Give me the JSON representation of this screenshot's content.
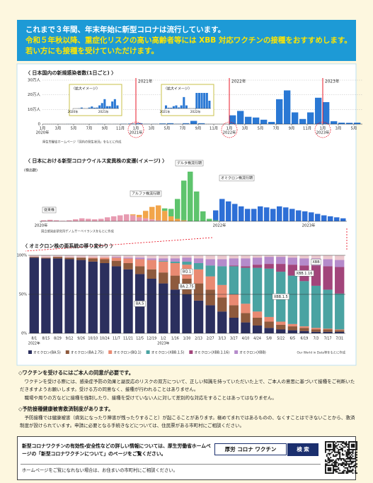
{
  "header": {
    "lines": [
      "これまで３年間、年末年始に新型コロナは流行しています。",
      "令和５年秋以降、重症化リスクの高い高齢者等には XBB 対応ワクチンの接種をおすすめします。",
      "若い方にも接種を受けていただけます。"
    ]
  },
  "chart_data": [
    {
      "type": "bar",
      "title": "〈 日本国内の新規感染者数(1日ごと) 〉",
      "color": "#2a78d4",
      "x": [
        "2020-01",
        "2020-02",
        "2020-03",
        "2020-04",
        "2020-05",
        "2020-06",
        "2020-07",
        "2020-08",
        "2020-09",
        "2020-10",
        "2020-11",
        "2020-12",
        "2021-01",
        "2021-02",
        "2021-03",
        "2021-04",
        "2021-05",
        "2021-06",
        "2021-07",
        "2021-08",
        "2021-09",
        "2021-10",
        "2021-11",
        "2021-12",
        "2022-01",
        "2022-02",
        "2022-03",
        "2022-04",
        "2022-05",
        "2022-06",
        "2022-07",
        "2022-08",
        "2022-09",
        "2022-10",
        "2022-11",
        "2022-12",
        "2023-01",
        "2023-02",
        "2023-03",
        "2023-04",
        "2023-05"
      ],
      "values": [
        0,
        10,
        100,
        600,
        100,
        50,
        600,
        1300,
        500,
        600,
        2000,
        3500,
        6000,
        1500,
        1500,
        4500,
        6000,
        2000,
        6000,
        22000,
        6000,
        400,
        150,
        300,
        60000,
        90000,
        50000,
        45000,
        30000,
        15000,
        170000,
        230000,
        80000,
        35000,
        80000,
        180000,
        150000,
        20000,
        10000,
        9000,
        10000
      ],
      "xlim": [
        "2020-01",
        "2023-05"
      ],
      "ylim": [
        0,
        300000
      ],
      "yticks": [
        0,
        {
          "value": 100000,
          "label": "10万人"
        },
        {
          "value": 200000,
          "label": "20万人"
        },
        {
          "value": 300000,
          "label": "30万人"
        }
      ],
      "xticks": [
        {
          "value": "2020-01",
          "label": "1月"
        },
        {
          "value": "2020-03",
          "label": "3月"
        },
        {
          "value": "2020-05",
          "label": "5月"
        },
        {
          "value": "2020-07",
          "label": "7月"
        },
        {
          "value": "2020-09",
          "label": "9月"
        },
        {
          "value": "2020-11",
          "label": "11月"
        },
        {
          "value": "2021-01",
          "label": "1月"
        },
        {
          "value": "2021-03",
          "label": "3月"
        },
        {
          "value": "2021-05",
          "label": "5月"
        },
        {
          "value": "2021-07",
          "label": "7月"
        },
        {
          "value": "2021-09",
          "label": "9月"
        },
        {
          "value": "2021-11",
          "label": "11月"
        },
        {
          "value": "2022-01",
          "label": "1月"
        },
        {
          "value": "2022-03",
          "label": "3月"
        },
        {
          "value": "2022-05",
          "label": "5月"
        },
        {
          "value": "2022-07",
          "label": "7月"
        },
        {
          "value": "2022-09",
          "label": "9月"
        },
        {
          "value": "2022-11",
          "label": "11月"
        },
        {
          "value": "2023-01",
          "label": "1月"
        },
        {
          "value": "2023-03",
          "label": "3月"
        },
        {
          "value": "2023-05",
          "label": "5月"
        }
      ],
      "year_labels": [
        {
          "value": "2020-01",
          "label": "2020年"
        },
        {
          "value": "2021-01",
          "label": "2021年"
        },
        {
          "value": "2022-01",
          "label": "2022年"
        },
        {
          "value": "2023-01",
          "label": "2023年"
        }
      ],
      "markers": [
        {
          "value": "2021-01",
          "label": "2021年"
        },
        {
          "value": "2022-01",
          "label": "2022年"
        },
        {
          "value": "2023-01",
          "label": "2023年"
        }
      ],
      "marker_color": "#e60012",
      "insets": [
        {
          "title": "〈拡大イメージ〉",
          "xlim": [
            "2020-01",
            "2021-06"
          ],
          "ylim": [
            0,
            10000
          ],
          "xticks": [
            {
              "value": "2020-01",
              "label": "2020年"
            },
            {
              "value": "2021-01",
              "label": "2021年"
            }
          ]
        },
        {
          "title": "〈拡大イメージ〉",
          "xlim": [
            "2021-01",
            "2022-06"
          ],
          "ylim": [
            0,
            30000
          ],
          "xticks": [
            {
              "value": "2021-01",
              "label": "2021年"
            },
            {
              "value": "2022-01",
              "label": "2022年"
            }
          ]
        }
      ],
      "source": "厚生労働省ホームページ「国内の発生状況」をもとに作成"
    },
    {
      "type": "stacked_bar",
      "title": "〈 日本における新型コロナウイルス変異株の変遷(イメージ) 〉",
      "y_label": "(検出数)",
      "categories": [
        null,
        null,
        null,
        null,
        null,
        null,
        null,
        null,
        null,
        null,
        null,
        null,
        null,
        null,
        null,
        null,
        null,
        null,
        null,
        null,
        null,
        null,
        null,
        null,
        null,
        null,
        null,
        null,
        null,
        null,
        null,
        null,
        null,
        null,
        null,
        null,
        null,
        null,
        null,
        null,
        null,
        null,
        null,
        null,
        null,
        null,
        null,
        null
      ],
      "ylim": [
        0,
        100
      ],
      "year_labels": [
        {
          "value": 0,
          "label": "2020年"
        },
        {
          "value": 28,
          "label": "2022年"
        },
        {
          "value": 42,
          "label": "2023年"
        }
      ],
      "series": [
        {
          "name": "従来株",
          "color": "#e79bb1",
          "values": [
            2,
            3,
            2,
            1,
            2,
            4,
            6,
            5,
            4,
            5,
            8,
            10,
            12,
            14,
            12,
            8,
            6,
            4,
            2,
            1,
            0,
            0,
            0,
            0,
            0,
            0,
            0,
            0,
            0,
            0,
            0,
            0,
            0,
            0,
            0,
            0,
            0,
            0,
            0,
            0,
            0,
            0,
            0,
            0,
            0,
            0,
            0,
            0
          ]
        },
        {
          "name": "アルファ株流行期",
          "color": "#f2a54a",
          "values": [
            0,
            0,
            0,
            0,
            0,
            0,
            0,
            0,
            0,
            0,
            0,
            0,
            0,
            0,
            2,
            5,
            15,
            25,
            30,
            20,
            10,
            5,
            2,
            0,
            0,
            0,
            0,
            0,
            0,
            0,
            0,
            0,
            0,
            0,
            0,
            0,
            0,
            0,
            0,
            0,
            0,
            0,
            0,
            0,
            0,
            0,
            0,
            0
          ]
        },
        {
          "name": "デルタ株流行期",
          "color": "#5ec46d",
          "values": [
            0,
            0,
            0,
            0,
            0,
            0,
            0,
            0,
            0,
            0,
            0,
            0,
            0,
            0,
            0,
            0,
            0,
            0,
            0,
            5,
            15,
            40,
            80,
            100,
            60,
            20,
            5,
            2,
            0,
            0,
            0,
            0,
            0,
            0,
            0,
            0,
            0,
            0,
            0,
            0,
            0,
            0,
            0,
            0,
            0,
            0,
            0,
            0
          ]
        },
        {
          "name": "オミクロン株流行期",
          "color": "#2e6fd6",
          "values": [
            0,
            0,
            0,
            0,
            0,
            0,
            0,
            0,
            0,
            0,
            0,
            0,
            0,
            0,
            0,
            0,
            0,
            0,
            0,
            0,
            0,
            0,
            0,
            0,
            0,
            0,
            0,
            20,
            45,
            40,
            35,
            30,
            25,
            25,
            30,
            28,
            25,
            30,
            28,
            25,
            22,
            20,
            18,
            15,
            12,
            10,
            8,
            6
          ]
        }
      ],
      "source": "国立感染症研究所ゲノムサーベイランスをもとに作成"
    },
    {
      "type": "stacked_bar",
      "title": "〈 オミクロン株の亜系統の移り変わり 〉",
      "categories": [
        "8/1",
        "8/15",
        "8/29",
        "9/12",
        "9/26",
        "10/10",
        "10/24",
        "11/7",
        "11/21",
        "12/5",
        "12/19",
        "1/2",
        "1/16",
        "1/30",
        "2/13",
        "2/27",
        "3/13",
        "3/27",
        "4/10",
        "4/24",
        "5/8",
        "5/22",
        "6/5",
        "6/19",
        "7/3",
        "7/17",
        "7/31"
      ],
      "year_labels": [
        {
          "value": 0,
          "label": "2022年"
        },
        {
          "value": 11,
          "label": "2023年"
        }
      ],
      "ylim": [
        0,
        100
      ],
      "yticks": [
        {
          "value": 0,
          "label": "0%"
        },
        {
          "value": 50,
          "label": "50%"
        },
        {
          "value": 100,
          "label": "100%"
        }
      ],
      "series": [
        {
          "name": "オミクロン(BA.5)",
          "label": "BA.5",
          "color": "#2b2f5e",
          "values": [
            97,
            96,
            96,
            95,
            94,
            92,
            90,
            86,
            82,
            76,
            70,
            64,
            56,
            50,
            42,
            36,
            28,
            20,
            14,
            10,
            7,
            5,
            4,
            3,
            2,
            2,
            2
          ]
        },
        {
          "name": "オミクロン(BA.2.75)",
          "label": "BA.2.75",
          "color": "#8e5a3d",
          "values": [
            1,
            1,
            2,
            2,
            3,
            4,
            5,
            7,
            8,
            10,
            12,
            14,
            18,
            20,
            22,
            20,
            18,
            16,
            12,
            10,
            8,
            6,
            5,
            4,
            3,
            3,
            2
          ]
        },
        {
          "name": "オミクロン(BQ.1)",
          "label": "BQ.1",
          "color": "#e98a72",
          "values": [
            0,
            0,
            0,
            0,
            0,
            1,
            2,
            4,
            6,
            9,
            12,
            14,
            16,
            18,
            18,
            17,
            16,
            14,
            12,
            8,
            6,
            4,
            3,
            2,
            2,
            1,
            1
          ]
        },
        {
          "name": "オミクロン(XBB.1.5)",
          "label": "XBB.1.5",
          "color": "#4aa3a2",
          "values": [
            0,
            0,
            0,
            0,
            0,
            0,
            0,
            0,
            0,
            0,
            0,
            1,
            2,
            4,
            8,
            14,
            24,
            36,
            46,
            56,
            62,
            64,
            62,
            58,
            54,
            50,
            46
          ]
        },
        {
          "name": "オミクロン(XBB.1.16)",
          "label": "XBB.1.16",
          "color": "#a2457b",
          "values": [
            0,
            0,
            0,
            0,
            0,
            0,
            0,
            0,
            0,
            0,
            0,
            0,
            0,
            0,
            0,
            0,
            0,
            1,
            2,
            4,
            6,
            10,
            14,
            20,
            26,
            30,
            34
          ]
        },
        {
          "name": "オミクロン(XBB)",
          "label": "XBB",
          "color": "#b58bcb",
          "values": [
            0,
            0,
            0,
            0,
            0,
            0,
            0,
            1,
            1,
            2,
            2,
            3,
            4,
            5,
            6,
            8,
            9,
            9,
            10,
            9,
            9,
            9,
            9,
            9,
            9,
            9,
            9
          ]
        }
      ],
      "source": "Our World in Data等をもとに作成"
    }
  ],
  "notices": [
    {
      "heading": "◇ワクチンを受けるにはご本人の同意が必要です。",
      "paragraphs": [
        "ワクチンを受ける際には、感染症予防の効果と副反応のリスクの双方について、正しい知識を持っていただいた上で、ご本人の意思に基づいて接種をご判断いただきますようお願いします。受ける方の同意なく、接種が行われることはありません。",
        "職場や周りの方などに接種を強制したり、接種を受けていない人に対して差別的な対応をすることはあってはなりません。"
      ]
    },
    {
      "heading": "◇予防接種健康被害救済制度があります。",
      "paragraphs": [
        "予防接種では健康被害（病気になったり障害が残ったりすること）が起こることがあります。極めてまれではあるものの、なくすことはできないことから、救済制度が設けられています。申請に必要となる手続きなどについては、住民票がある市町村にご相談ください。"
      ]
    }
  ],
  "info_box": {
    "text": "新型コロナワクチンの有効性・安全性などの詳しい情報については、厚生労働省ホームページの「新型コロナワクチンについて」のページをご覧ください。",
    "search_term": "厚労 コロナ ワクチン",
    "search_button": "検 索",
    "footnote": "ホームページをご覧になれない場合は、お住まいの市町村にご相談ください。"
  }
}
